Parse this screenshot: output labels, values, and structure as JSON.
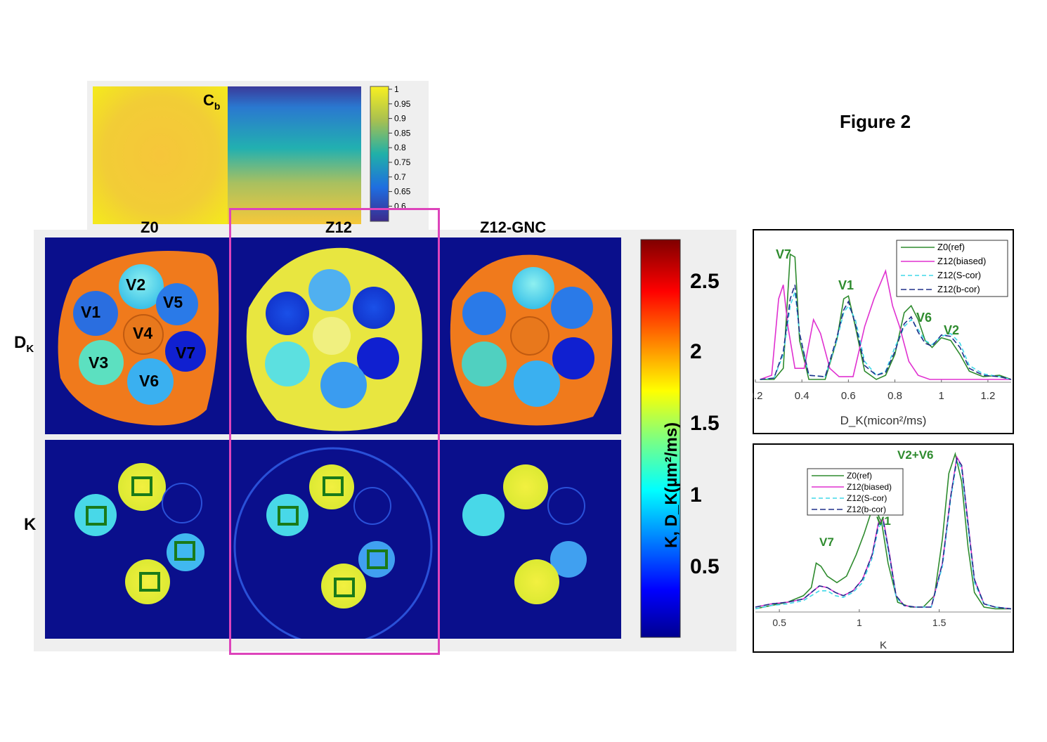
{
  "figure": {
    "title": "Figure 2"
  },
  "cb_map": {
    "label_main": "C",
    "label_sub": "b",
    "ticks": [
      "1",
      "0.95",
      "0.9",
      "0.85",
      "0.8",
      "0.75",
      "0.7",
      "0.65",
      "0.6"
    ]
  },
  "columns": [
    "Z0",
    "Z12",
    "Z12-GNC"
  ],
  "rows": {
    "dk_label_main": "D",
    "dk_label_sub": "K",
    "k_label": "K"
  },
  "vial_labels": [
    "V1",
    "V2",
    "V3",
    "V4",
    "V5",
    "V6",
    "V7"
  ],
  "main_colorbar": {
    "label": "K, D_K(µm²/ms)",
    "ticks": [
      "2.5",
      "2",
      "1.5",
      "1",
      "0.5"
    ]
  },
  "colors": {
    "dk_background_orange": "#f07a1c",
    "z12_dk_yellow": "#e8e640",
    "dark_blue": "#0a0f8c",
    "highlight_magenta": "#dd44bb",
    "roi_green": "#1a7a1a",
    "z0_ref": "#2e8b2e",
    "z12_biased": "#e030d0",
    "z12_scor": "#40d8e8",
    "z12_bcor": "#20308a"
  },
  "chart_data": [
    {
      "type": "line",
      "xlabel": "D_K(micon²/ms)",
      "xlim": [
        0.2,
        1.3
      ],
      "ylim": [
        0,
        1
      ],
      "x_ticks": [
        "0.2",
        "0.4",
        "0.6",
        "0.8",
        "1",
        "1.2"
      ],
      "legend": [
        "Z0(ref)",
        "Z12(biased)",
        "Z12(S-cor)",
        "Z12(b-cor)"
      ],
      "annotations": [
        "V7",
        "V1",
        "V6",
        "V2"
      ],
      "series": [
        {
          "name": "Z0(ref)",
          "x": [
            0.22,
            0.28,
            0.32,
            0.35,
            0.37,
            0.39,
            0.43,
            0.5,
            0.55,
            0.58,
            0.6,
            0.63,
            0.67,
            0.72,
            0.76,
            0.8,
            0.84,
            0.87,
            0.9,
            0.93,
            0.96,
            1.0,
            1.04,
            1.08,
            1.12,
            1.18,
            1.25,
            1.3
          ],
          "y": [
            0.02,
            0.02,
            0.1,
            0.92,
            0.9,
            0.3,
            0.02,
            0.02,
            0.3,
            0.6,
            0.62,
            0.4,
            0.08,
            0.02,
            0.05,
            0.2,
            0.5,
            0.55,
            0.45,
            0.3,
            0.25,
            0.32,
            0.3,
            0.2,
            0.08,
            0.04,
            0.05,
            0.02
          ]
        },
        {
          "name": "Z12(biased)",
          "x": [
            0.22,
            0.27,
            0.3,
            0.32,
            0.34,
            0.37,
            0.41,
            0.45,
            0.48,
            0.52,
            0.56,
            0.62,
            0.67,
            0.71,
            0.74,
            0.76,
            0.79,
            0.82,
            0.86,
            0.9,
            0.95,
            1.0,
            1.1,
            1.3
          ],
          "y": [
            0.02,
            0.05,
            0.6,
            0.7,
            0.4,
            0.1,
            0.1,
            0.45,
            0.35,
            0.1,
            0.04,
            0.04,
            0.4,
            0.6,
            0.72,
            0.8,
            0.55,
            0.4,
            0.15,
            0.05,
            0.02,
            0.02,
            0.02,
            0.02
          ]
        },
        {
          "name": "Z12(S-cor)",
          "x": [
            0.22,
            0.28,
            0.32,
            0.35,
            0.37,
            0.39,
            0.43,
            0.5,
            0.55,
            0.58,
            0.6,
            0.63,
            0.67,
            0.72,
            0.76,
            0.8,
            0.84,
            0.87,
            0.9,
            0.93,
            0.96,
            1.0,
            1.04,
            1.08,
            1.12,
            1.18,
            1.25,
            1.3
          ],
          "y": [
            0.02,
            0.03,
            0.2,
            0.55,
            0.65,
            0.35,
            0.05,
            0.04,
            0.3,
            0.5,
            0.55,
            0.45,
            0.15,
            0.05,
            0.08,
            0.25,
            0.4,
            0.45,
            0.38,
            0.3,
            0.27,
            0.33,
            0.35,
            0.28,
            0.12,
            0.06,
            0.04,
            0.02
          ]
        },
        {
          "name": "Z12(b-cor)",
          "x": [
            0.22,
            0.28,
            0.32,
            0.35,
            0.37,
            0.39,
            0.43,
            0.5,
            0.55,
            0.58,
            0.6,
            0.63,
            0.67,
            0.72,
            0.76,
            0.8,
            0.84,
            0.87,
            0.9,
            0.93,
            0.96,
            1.0,
            1.04,
            1.08,
            1.12,
            1.18,
            1.25,
            1.3
          ],
          "y": [
            0.02,
            0.03,
            0.22,
            0.6,
            0.7,
            0.35,
            0.05,
            0.04,
            0.32,
            0.52,
            0.58,
            0.42,
            0.12,
            0.05,
            0.07,
            0.22,
            0.42,
            0.47,
            0.36,
            0.28,
            0.26,
            0.34,
            0.33,
            0.25,
            0.1,
            0.05,
            0.04,
            0.02
          ]
        }
      ]
    },
    {
      "type": "line",
      "xlabel": "K",
      "xlim": [
        0.35,
        1.95
      ],
      "ylim": [
        0,
        1
      ],
      "x_ticks": [
        "0.5",
        "1",
        "1.5"
      ],
      "legend": [
        "Z0(ref)",
        "Z12(biased)",
        "Z12(S-cor)",
        "Z12(b-cor)"
      ],
      "annotations": [
        "V2+V6",
        "V7",
        "V1"
      ],
      "series": [
        {
          "name": "Z0(ref)",
          "x": [
            0.35,
            0.45,
            0.55,
            0.65,
            0.7,
            0.73,
            0.76,
            0.8,
            0.86,
            0.92,
            0.98,
            1.03,
            1.07,
            1.1,
            1.14,
            1.18,
            1.24,
            1.32,
            1.4,
            1.47,
            1.52,
            1.56,
            1.6,
            1.64,
            1.68,
            1.72,
            1.78,
            1.85,
            1.95
          ],
          "y": [
            0.02,
            0.04,
            0.06,
            0.1,
            0.15,
            0.3,
            0.28,
            0.22,
            0.18,
            0.22,
            0.35,
            0.48,
            0.6,
            0.63,
            0.55,
            0.3,
            0.06,
            0.03,
            0.03,
            0.1,
            0.45,
            0.85,
            0.97,
            0.8,
            0.4,
            0.12,
            0.03,
            0.02,
            0.02
          ]
        },
        {
          "name": "Z12(biased)",
          "x": [
            0.35,
            0.45,
            0.55,
            0.65,
            0.7,
            0.75,
            0.8,
            0.85,
            0.9,
            0.96,
            1.02,
            1.08,
            1.12,
            1.15,
            1.19,
            1.23,
            1.28,
            1.35,
            1.45,
            1.52,
            1.57,
            1.61,
            1.64,
            1.68,
            1.72,
            1.78,
            1.85,
            1.95
          ],
          "y": [
            0.03,
            0.05,
            0.06,
            0.08,
            0.12,
            0.16,
            0.15,
            0.12,
            0.1,
            0.13,
            0.2,
            0.35,
            0.55,
            0.57,
            0.35,
            0.1,
            0.04,
            0.03,
            0.03,
            0.3,
            0.7,
            0.95,
            0.9,
            0.55,
            0.2,
            0.05,
            0.03,
            0.02
          ]
        },
        {
          "name": "Z12(S-cor)",
          "x": [
            0.35,
            0.45,
            0.55,
            0.65,
            0.7,
            0.75,
            0.8,
            0.85,
            0.9,
            0.96,
            1.02,
            1.08,
            1.12,
            1.15,
            1.19,
            1.23,
            1.28,
            1.35,
            1.45,
            1.52,
            1.57,
            1.61,
            1.64,
            1.68,
            1.72,
            1.78,
            1.85,
            1.95
          ],
          "y": [
            0.02,
            0.04,
            0.05,
            0.07,
            0.1,
            0.13,
            0.13,
            0.1,
            0.09,
            0.12,
            0.18,
            0.33,
            0.52,
            0.55,
            0.33,
            0.09,
            0.04,
            0.03,
            0.03,
            0.28,
            0.68,
            0.93,
            0.88,
            0.52,
            0.18,
            0.05,
            0.03,
            0.02
          ]
        },
        {
          "name": "Z12(b-cor)",
          "x": [
            0.35,
            0.45,
            0.55,
            0.65,
            0.7,
            0.75,
            0.8,
            0.85,
            0.9,
            0.96,
            1.02,
            1.08,
            1.12,
            1.15,
            1.19,
            1.23,
            1.28,
            1.35,
            1.45,
            1.52,
            1.57,
            1.61,
            1.64,
            1.68,
            1.72,
            1.78,
            1.85,
            1.95
          ],
          "y": [
            0.03,
            0.05,
            0.06,
            0.08,
            0.12,
            0.16,
            0.15,
            0.12,
            0.1,
            0.13,
            0.2,
            0.35,
            0.54,
            0.56,
            0.34,
            0.1,
            0.04,
            0.03,
            0.03,
            0.3,
            0.7,
            0.94,
            0.9,
            0.54,
            0.2,
            0.05,
            0.03,
            0.02
          ]
        }
      ]
    }
  ]
}
